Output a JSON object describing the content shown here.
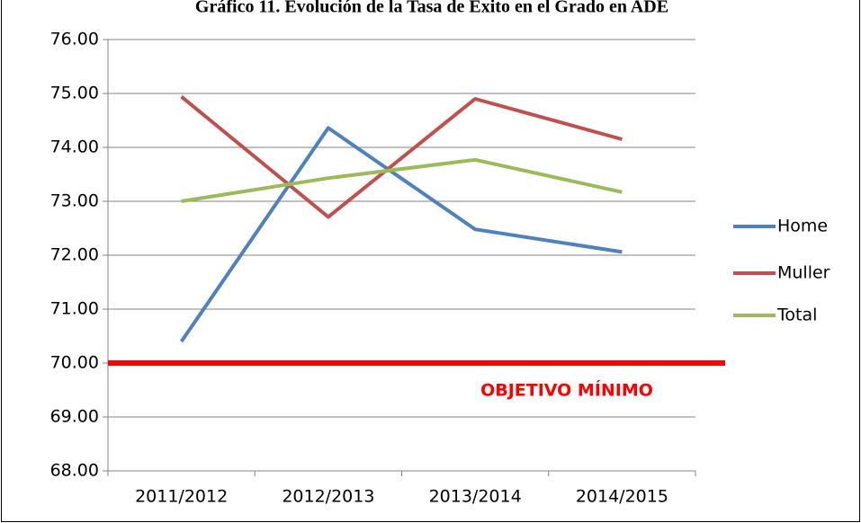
{
  "chart_data": {
    "type": "line",
    "title": "Gráfico 11. Evolución de la Tasa de Éxito en el Grado en ADE",
    "categories": [
      "2011/2012",
      "2012/2013",
      "2013/2014",
      "2014/2015"
    ],
    "series": [
      {
        "name": "Home",
        "color": "#4f81bd",
        "values": [
          70.4,
          74.36,
          72.48,
          72.06
        ]
      },
      {
        "name": "Muller",
        "color": "#c0504d",
        "values": [
          74.94,
          72.71,
          74.9,
          74.15
        ]
      },
      {
        "name": "Total",
        "color": "#9bbb59",
        "values": [
          73.0,
          73.43,
          73.77,
          73.17
        ]
      }
    ],
    "ylim": [
      68,
      76
    ],
    "yticks": [
      {
        "value": 68,
        "label": "68.00"
      },
      {
        "value": 69,
        "label": "69.00"
      },
      {
        "value": 70,
        "label": "70.00"
      },
      {
        "value": 71,
        "label": "71.00"
      },
      {
        "value": 72,
        "label": "72.00"
      },
      {
        "value": 73,
        "label": "73.00"
      },
      {
        "value": 74,
        "label": "74.00"
      },
      {
        "value": 75,
        "label": "75.00"
      },
      {
        "value": 76,
        "label": "76.00"
      }
    ],
    "grid": true,
    "legend": "right",
    "target": {
      "value": 70,
      "label": "OBJETIVO MÍNIMO",
      "color": "#ff0000"
    }
  }
}
